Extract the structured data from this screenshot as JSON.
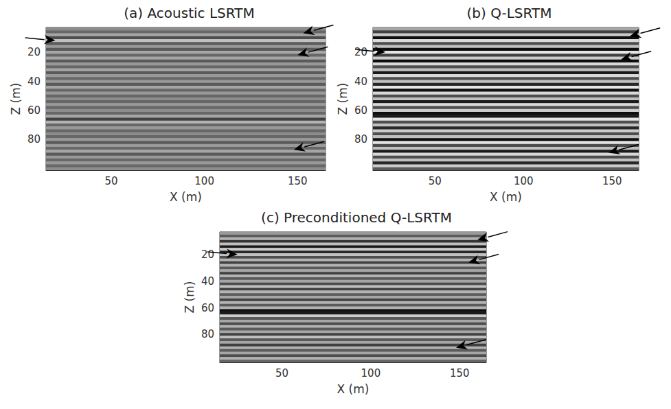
{
  "chart_data": [
    {
      "type": "heatmap",
      "title": "(a) Acoustic LSRTM",
      "xlabel": "X (m)",
      "ylabel": "Z (m)",
      "xlim": [
        15,
        165
      ],
      "ylim": [
        3,
        101
      ],
      "xticks": [
        50,
        100,
        150
      ],
      "yticks": [
        20,
        40,
        60,
        80
      ],
      "z": [
        4,
        6,
        8,
        10,
        12,
        14,
        16,
        18,
        20,
        22,
        24,
        26,
        28,
        30,
        32,
        34,
        36,
        38,
        40,
        42,
        44,
        46,
        48,
        50,
        52,
        54,
        56,
        58,
        60,
        62,
        64,
        66,
        68,
        70,
        72,
        74,
        76,
        78,
        80,
        82,
        84,
        86,
        88,
        90,
        92,
        94,
        96,
        98,
        100
      ],
      "amplitude": [
        0.1,
        -0.2,
        0.3,
        -0.4,
        0.5,
        -0.3,
        0.2,
        -0.3,
        0.3,
        -0.2,
        0.3,
        -0.3,
        0.2,
        -0.2,
        0.3,
        -0.3,
        0.2,
        -0.2,
        0.2,
        -0.3,
        0.3,
        -0.2,
        0.2,
        -0.2,
        0.1,
        -0.2,
        0.2,
        -0.2,
        0.1,
        -0.2,
        0.3,
        -0.5,
        0.4,
        -0.2,
        0.2,
        -0.2,
        0.1,
        -0.2,
        0.2,
        -0.3,
        0.2,
        -0.2,
        0.3,
        -0.3,
        0.2,
        -0.2,
        0.2,
        -0.2,
        0.1
      ],
      "arrows": [
        {
          "x": 20,
          "z": 12
        },
        {
          "x": 153,
          "z": 7
        },
        {
          "x": 150,
          "z": 22
        },
        {
          "x": 148,
          "z": 87
        }
      ]
    },
    {
      "type": "heatmap",
      "title": "(b) Q-LSRTM",
      "xlabel": "X (m)",
      "ylabel": "Z (m)",
      "xlim": [
        15,
        165
      ],
      "ylim": [
        3,
        101
      ],
      "xticks": [
        50,
        100,
        150
      ],
      "yticks": [
        20,
        40,
        60,
        80
      ],
      "z": [
        4,
        6,
        8,
        10,
        12,
        14,
        16,
        18,
        20,
        22,
        24,
        26,
        28,
        30,
        32,
        34,
        36,
        38,
        40,
        42,
        44,
        46,
        48,
        50,
        52,
        54,
        56,
        58,
        60,
        62,
        64,
        66,
        68,
        70,
        72,
        74,
        76,
        78,
        80,
        82,
        84,
        86,
        88,
        90,
        92,
        94,
        96,
        98,
        100
      ],
      "amplitude": [
        0.3,
        -0.5,
        0.6,
        -0.9,
        0.7,
        -0.4,
        0.5,
        -0.9,
        0.8,
        -0.5,
        0.6,
        -0.9,
        0.7,
        -0.4,
        0.5,
        -0.8,
        0.7,
        -0.4,
        0.5,
        -0.7,
        0.8,
        -0.9,
        0.7,
        -0.4,
        0.5,
        -0.8,
        0.7,
        -0.4,
        0.6,
        -0.9,
        -0.8,
        0.8,
        -0.4,
        0.5,
        -0.7,
        0.6,
        -0.4,
        0.5,
        -0.9,
        0.8,
        -0.4,
        0.5,
        -0.8,
        0.7,
        -0.4,
        0.5,
        -0.7,
        0.6,
        -0.3
      ],
      "arrows": [
        {
          "x": 22,
          "z": 20
        },
        {
          "x": 160,
          "z": 9
        },
        {
          "x": 155,
          "z": 25
        },
        {
          "x": 148,
          "z": 89
        }
      ]
    },
    {
      "type": "heatmap",
      "title": "(c) Preconditioned Q-LSRTM",
      "xlabel": "X (m)",
      "ylabel": "Z (m)",
      "xlim": [
        15,
        165
      ],
      "ylim": [
        3,
        101
      ],
      "xticks": [
        50,
        100,
        150
      ],
      "yticks": [
        20,
        40,
        60,
        80
      ],
      "z": [
        4,
        6,
        8,
        10,
        12,
        14,
        16,
        18,
        20,
        22,
        24,
        26,
        28,
        30,
        32,
        34,
        36,
        38,
        40,
        42,
        44,
        46,
        48,
        50,
        52,
        54,
        56,
        58,
        60,
        62,
        64,
        66,
        68,
        70,
        72,
        74,
        76,
        78,
        80,
        82,
        84,
        86,
        88,
        90,
        92,
        94,
        96,
        98,
        100
      ],
      "amplitude": [
        0.2,
        -0.3,
        0.4,
        -0.6,
        0.5,
        -0.8,
        0.6,
        -0.7,
        0.5,
        -0.4,
        0.4,
        -0.5,
        0.4,
        -0.3,
        0.3,
        -0.5,
        0.4,
        -0.3,
        0.3,
        -0.4,
        0.5,
        -0.5,
        0.4,
        -0.3,
        0.3,
        -0.5,
        0.4,
        -0.3,
        0.4,
        -0.9,
        -0.8,
        0.6,
        -0.3,
        0.3,
        -0.4,
        0.4,
        -0.3,
        0.3,
        -0.5,
        0.5,
        -0.3,
        0.3,
        -0.5,
        0.4,
        -0.3,
        0.3,
        -0.4,
        0.4,
        -0.2
      ],
      "arrows": [
        {
          "x": 25,
          "z": 20
        },
        {
          "x": 160,
          "z": 9
        },
        {
          "x": 155,
          "z": 26
        },
        {
          "x": 148,
          "z": 90
        }
      ]
    }
  ]
}
